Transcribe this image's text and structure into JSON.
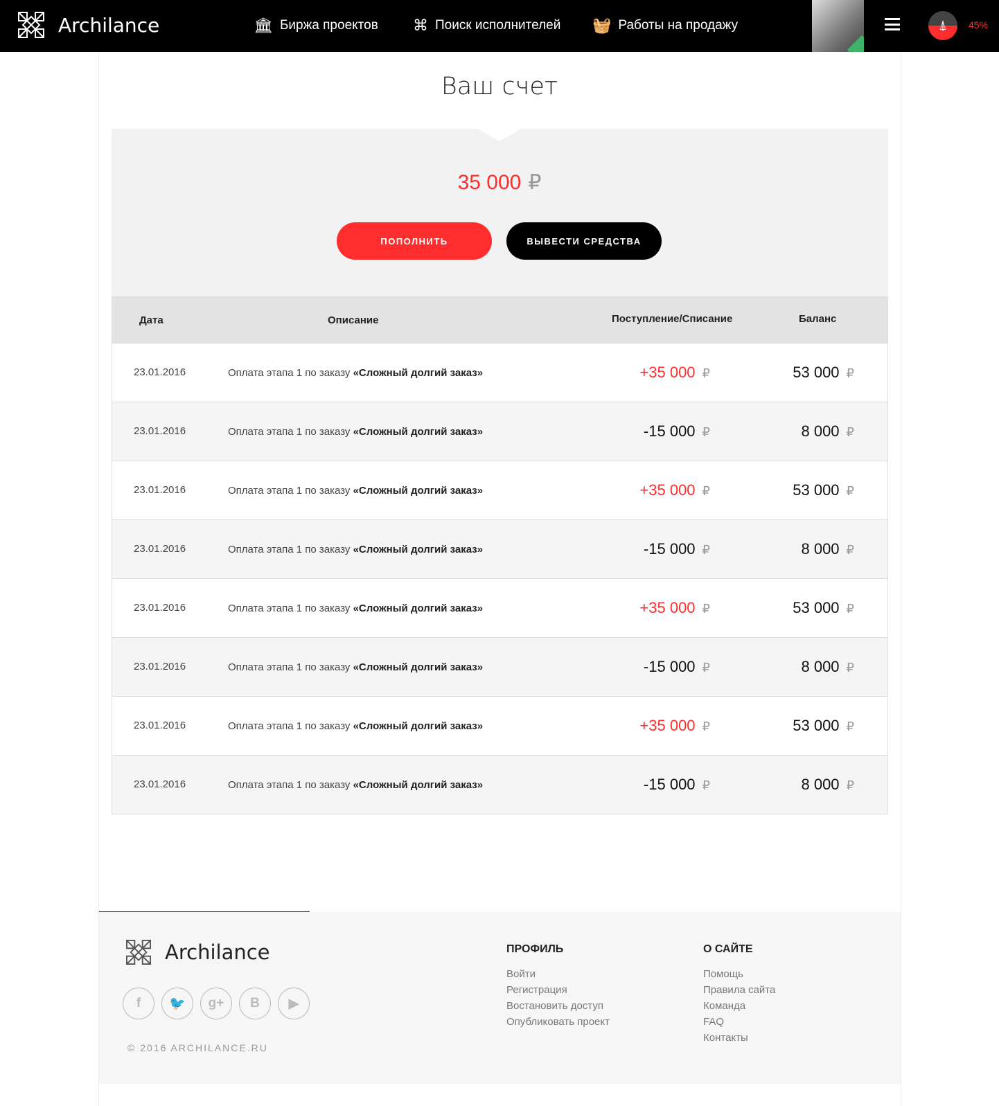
{
  "header": {
    "brand": "Archilance",
    "nav": [
      {
        "label": "Биржа проектов",
        "icon": "column-icon"
      },
      {
        "label": "Поиск исполнителей",
        "icon": "binoculars-icon"
      },
      {
        "label": "Работы на продажу",
        "icon": "basket-icon"
      }
    ],
    "progress": "45%"
  },
  "page": {
    "title": "Ваш счет",
    "balance": "35 000",
    "currency": "₽",
    "topup_label": "ПОПОЛНИТЬ",
    "withdraw_label": "ВЫВЕСТИ СРЕДСТВА"
  },
  "colors": {
    "accent": "#ff2d2d",
    "dark": "#000000"
  },
  "table": {
    "headers": [
      "Дата",
      "Описание",
      "Поступление/Списание",
      "Баланс"
    ],
    "rows": [
      {
        "date": "23.01.2016",
        "desc": "Оплата этапа 1 по заказу ",
        "order": "«Сложный долгий заказ»",
        "amount": "+35 000",
        "balance": "53 000",
        "positive": true
      },
      {
        "date": "23.01.2016",
        "desc": "Оплата этапа 1 по заказу ",
        "order": "«Сложный долгий заказ»",
        "amount": "-15 000",
        "balance": "8 000",
        "positive": false
      },
      {
        "date": "23.01.2016",
        "desc": "Оплата этапа 1 по заказу ",
        "order": "«Сложный долгий заказ»",
        "amount": "+35 000",
        "balance": "53 000",
        "positive": true
      },
      {
        "date": "23.01.2016",
        "desc": "Оплата этапа 1 по заказу ",
        "order": "«Сложный долгий заказ»",
        "amount": "-15 000",
        "balance": "8 000",
        "positive": false
      },
      {
        "date": "23.01.2016",
        "desc": "Оплата этапа 1 по заказу ",
        "order": "«Сложный долгий заказ»",
        "amount": "+35 000",
        "balance": "53 000",
        "positive": true
      },
      {
        "date": "23.01.2016",
        "desc": "Оплата этапа 1 по заказу ",
        "order": "«Сложный долгий заказ»",
        "amount": "-15 000",
        "balance": "8 000",
        "positive": false
      },
      {
        "date": "23.01.2016",
        "desc": "Оплата этапа 1 по заказу ",
        "order": "«Сложный долгий заказ»",
        "amount": "+35 000",
        "balance": "53 000",
        "positive": true
      },
      {
        "date": "23.01.2016",
        "desc": "Оплата этапа 1 по заказу ",
        "order": "«Сложный долгий заказ»",
        "amount": "-15 000",
        "balance": "8 000",
        "positive": false
      }
    ]
  },
  "footer": {
    "brand": "Archilance",
    "copyright": "© 2016 ARCHILANCE.RU",
    "socials": [
      {
        "icon": "facebook-icon",
        "glyph": "f"
      },
      {
        "icon": "twitter-icon",
        "glyph": "🐦"
      },
      {
        "icon": "google-plus-icon",
        "glyph": "g+"
      },
      {
        "icon": "vk-icon",
        "glyph": "B"
      },
      {
        "icon": "youtube-icon",
        "glyph": "▶"
      }
    ],
    "profile": {
      "title": "ПРОФИЛЬ",
      "links": [
        "Войти",
        "Регистрация",
        "Востановить доступ",
        "Опубликовать проект"
      ]
    },
    "about": {
      "title": "О САЙТЕ",
      "links": [
        "Помощь",
        "Правила сайта",
        "Команда",
        "FAQ",
        "Контакты"
      ]
    }
  }
}
